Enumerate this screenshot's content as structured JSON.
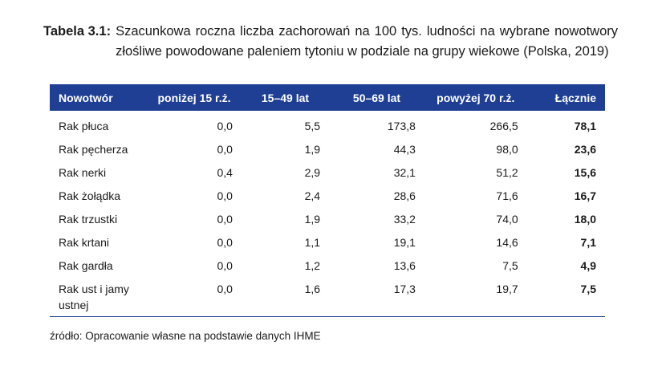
{
  "caption": {
    "label": "Tabela 3.1:",
    "text": "Szacunkowa roczna liczba zachorowań na 100 tys. ludności na wybrane nowotwory złośliwe powodowane paleniem tytoniu w podziale na grupy wiekowe (Polska, 2019)"
  },
  "table": {
    "headers": [
      "Nowotwór",
      "poniżej 15 r.ż.",
      "15–49 lat",
      "50–69 lat",
      "powyżej 70 r.ż.",
      "Łącznie"
    ],
    "rows": [
      [
        "Rak płuca",
        "0,0",
        "5,5",
        "173,8",
        "266,5",
        "78,1"
      ],
      [
        "Rak pęcherza",
        "0,0",
        "1,9",
        "44,3",
        "98,0",
        "23,6"
      ],
      [
        "Rak nerki",
        "0,4",
        "2,9",
        "32,1",
        "51,2",
        "15,6"
      ],
      [
        "Rak żołądka",
        "0,0",
        "2,4",
        "28,6",
        "71,6",
        "16,7"
      ],
      [
        "Rak trzustki",
        "0,0",
        "1,9",
        "33,2",
        "74,0",
        "18,0"
      ],
      [
        "Rak krtani",
        "0,0",
        "1,1",
        "19,1",
        "14,6",
        "7,1"
      ],
      [
        "Rak gardła",
        "0,0",
        "1,2",
        "13,6",
        "7,5",
        "4,9"
      ],
      [
        "Rak ust i jamy ustnej",
        "0,0",
        "1,6",
        "17,3",
        "19,7",
        "7,5"
      ]
    ]
  },
  "source": "źródło: Opracowanie własne na podstawie danych IHME",
  "colors": {
    "header_bg": "#1e3f94",
    "header_text": "#ffffff"
  }
}
